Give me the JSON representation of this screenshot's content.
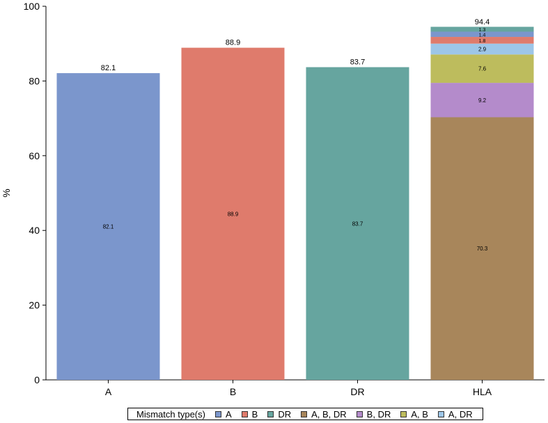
{
  "chart_data": {
    "type": "bar",
    "stacked": true,
    "categories": [
      "A",
      "B",
      "DR",
      "HLA"
    ],
    "ylabel": "%",
    "xlabel": "",
    "ylim": [
      0,
      100
    ],
    "yticks": [
      0,
      20,
      40,
      60,
      80,
      100
    ],
    "grid": false,
    "legend_title": "Mismatch type(s)",
    "legend_position": "bottom",
    "series": [
      {
        "name": "A",
        "color": "#7b96cc",
        "values": [
          82.1,
          0,
          0,
          1.4
        ]
      },
      {
        "name": "B",
        "color": "#df7b6c",
        "values": [
          0,
          88.9,
          0,
          1.8
        ]
      },
      {
        "name": "DR",
        "color": "#66a59f",
        "values": [
          0,
          0,
          83.7,
          1.3
        ]
      },
      {
        "name": "A, B, DR",
        "color": "#a8865b",
        "values": [
          0,
          0,
          0,
          70.3
        ]
      },
      {
        "name": "B, DR",
        "color": "#b48bcb",
        "values": [
          0,
          0,
          0,
          9.2
        ]
      },
      {
        "name": "A, B",
        "color": "#bdbc5d",
        "values": [
          0,
          0,
          0,
          7.6
        ]
      },
      {
        "name": "A, DR",
        "color": "#9dc6e8",
        "values": [
          0,
          0,
          0,
          2.9
        ]
      }
    ],
    "stack_order": [
      "A, B, DR",
      "B, DR",
      "A, B",
      "A, DR",
      "B",
      "A",
      "DR"
    ],
    "totals": [
      82.1,
      88.9,
      83.7,
      94.4
    ]
  }
}
